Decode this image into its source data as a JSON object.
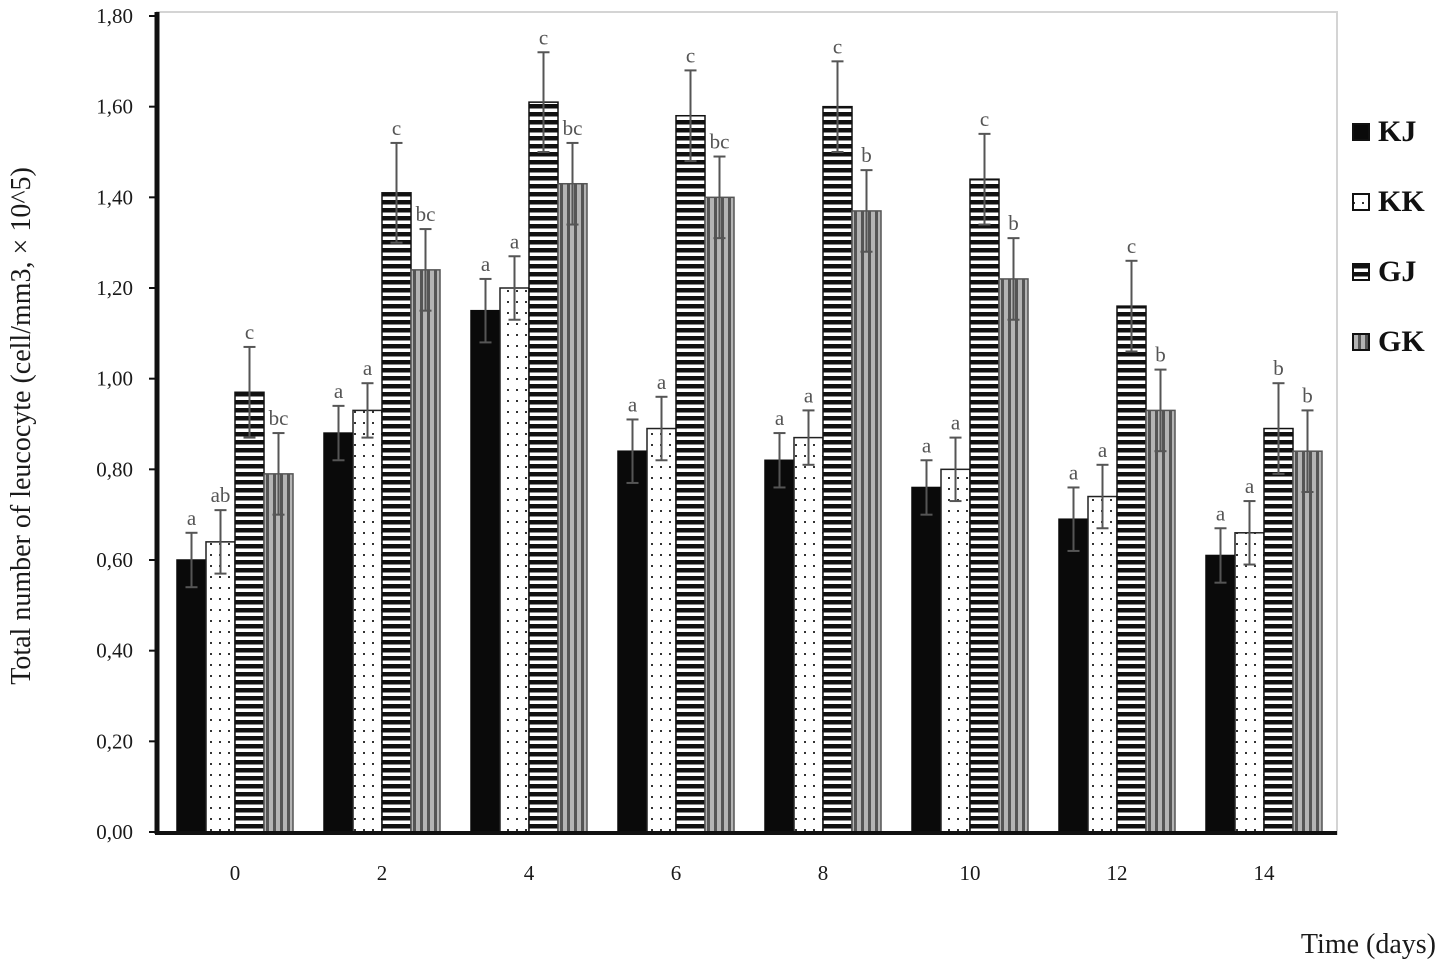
{
  "chart_data": {
    "type": "bar",
    "xlabel": "Time (days)",
    "ylabel": "Total number of leucocyte (cell/mm3, × 10^5)",
    "ylim": [
      0,
      1.8
    ],
    "yticks": [
      "0,00",
      "0,20",
      "0,40",
      "0,60",
      "0,80",
      "1,00",
      "1,20",
      "1,40",
      "1,60",
      "1,80"
    ],
    "categories": [
      "0",
      "2",
      "4",
      "6",
      "8",
      "10",
      "12",
      "14"
    ],
    "legend_position": "right",
    "grid": false,
    "series": [
      {
        "name": "KJ",
        "fill": "solid-black",
        "values": [
          0.6,
          0.88,
          1.15,
          0.84,
          0.82,
          0.76,
          0.69,
          0.61
        ],
        "errors": [
          0.06,
          0.06,
          0.07,
          0.07,
          0.06,
          0.06,
          0.07,
          0.06
        ],
        "labels": [
          "a",
          "a",
          "a",
          "a",
          "a",
          "a",
          "a",
          "a"
        ]
      },
      {
        "name": "KK",
        "fill": "dotted-white",
        "values": [
          0.64,
          0.93,
          1.2,
          0.89,
          0.87,
          0.8,
          0.74,
          0.66
        ],
        "errors": [
          0.07,
          0.06,
          0.07,
          0.07,
          0.06,
          0.07,
          0.07,
          0.07
        ],
        "labels": [
          "ab",
          "a",
          "a",
          "a",
          "a",
          "a",
          "a",
          "a"
        ]
      },
      {
        "name": "GJ",
        "fill": "horizontal-stripes",
        "values": [
          0.97,
          1.41,
          1.61,
          1.58,
          1.6,
          1.44,
          1.16,
          0.89
        ],
        "errors": [
          0.1,
          0.11,
          0.11,
          0.1,
          0.1,
          0.1,
          0.1,
          0.1
        ],
        "labels": [
          "c",
          "c",
          "c",
          "c",
          "c",
          "c",
          "c",
          "b"
        ]
      },
      {
        "name": "GK",
        "fill": "vertical-stripes-gray",
        "values": [
          0.79,
          1.24,
          1.43,
          1.4,
          1.37,
          1.22,
          0.93,
          0.84
        ],
        "errors": [
          0.09,
          0.09,
          0.09,
          0.09,
          0.09,
          0.09,
          0.09,
          0.09
        ],
        "labels": [
          "bc",
          "bc",
          "bc",
          "bc",
          "b",
          "b",
          "b",
          "b"
        ]
      }
    ]
  }
}
